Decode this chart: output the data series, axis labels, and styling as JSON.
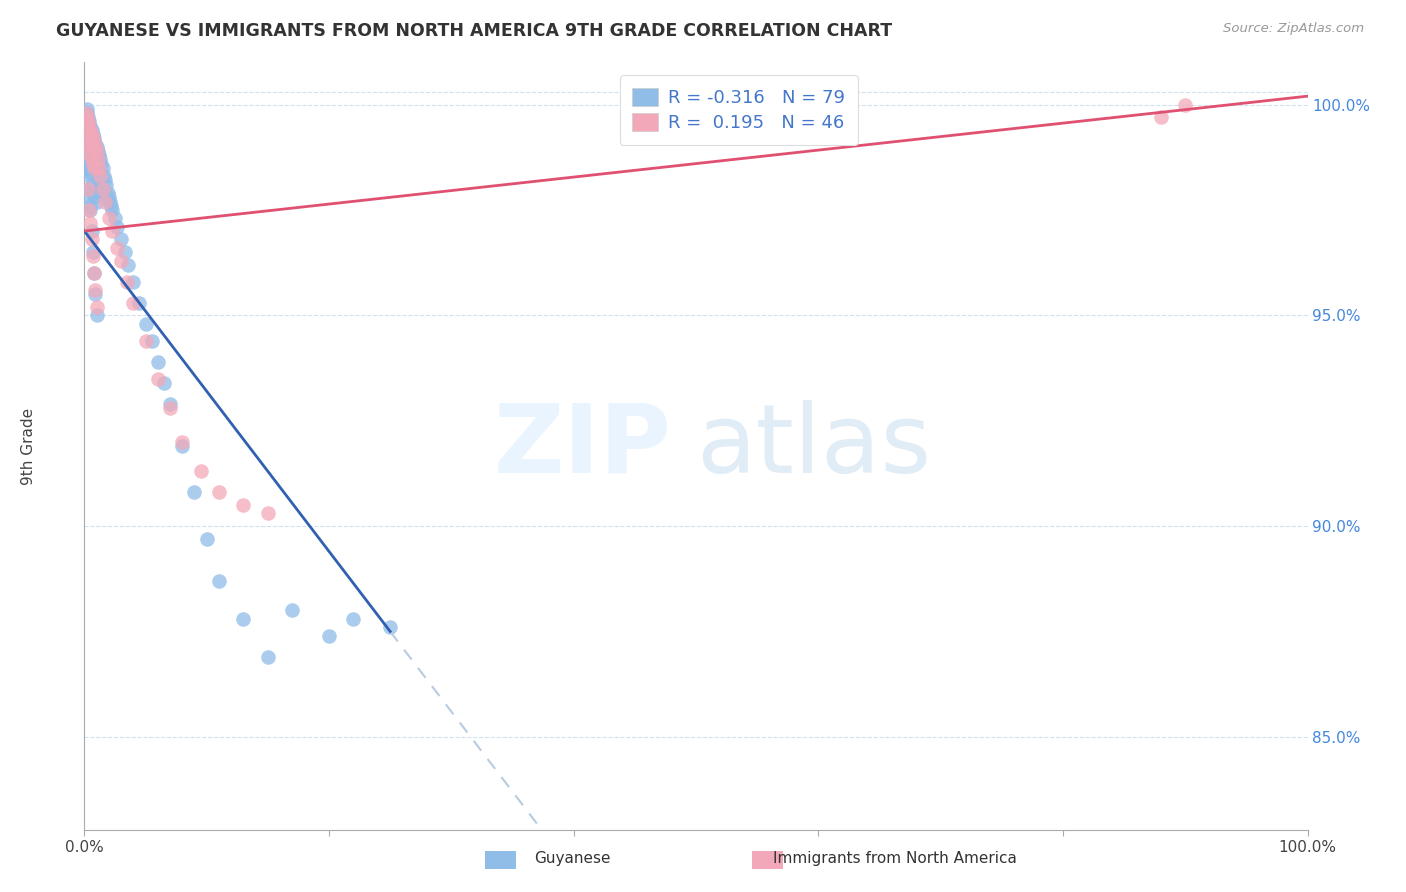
{
  "title": "GUYANESE VS IMMIGRANTS FROM NORTH AMERICA 9TH GRADE CORRELATION CHART",
  "source": "Source: ZipAtlas.com",
  "ylabel": "9th Grade",
  "blue_color": "#90bce8",
  "pink_color": "#f2a8b8",
  "blue_line_color": "#3060b0",
  "pink_line_color": "#e05070",
  "dashed_line_color": "#b8cce0",
  "legend_blue_r": "-0.316",
  "legend_blue_n": "79",
  "legend_pink_r": "0.195",
  "legend_pink_n": "46",
  "blue_line_x0": 0.0,
  "blue_line_y0": 0.97,
  "blue_line_x1": 0.25,
  "blue_line_y1": 0.875,
  "blue_line_solid_end": 0.25,
  "pink_line_x0": 0.0,
  "pink_line_y0": 0.97,
  "pink_line_x1": 1.0,
  "pink_line_y1": 1.002,
  "xlim": [
    0.0,
    1.0
  ],
  "ylim": [
    0.828,
    1.01
  ],
  "yticks": [
    0.85,
    0.9,
    0.95,
    1.0
  ],
  "ytick_labels": [
    "85.0%",
    "90.0%",
    "95.0%",
    "100.0%"
  ],
  "blue_x": [
    0.001,
    0.001,
    0.002,
    0.002,
    0.002,
    0.003,
    0.003,
    0.003,
    0.003,
    0.004,
    0.004,
    0.004,
    0.004,
    0.005,
    0.005,
    0.005,
    0.005,
    0.006,
    0.006,
    0.006,
    0.007,
    0.007,
    0.007,
    0.008,
    0.008,
    0.008,
    0.009,
    0.009,
    0.01,
    0.01,
    0.01,
    0.011,
    0.011,
    0.012,
    0.012,
    0.013,
    0.013,
    0.014,
    0.015,
    0.015,
    0.016,
    0.017,
    0.018,
    0.019,
    0.02,
    0.021,
    0.022,
    0.023,
    0.025,
    0.027,
    0.03,
    0.033,
    0.036,
    0.04,
    0.045,
    0.05,
    0.055,
    0.06,
    0.065,
    0.07,
    0.08,
    0.09,
    0.1,
    0.11,
    0.13,
    0.15,
    0.17,
    0.2,
    0.22,
    0.25,
    0.005,
    0.006,
    0.007,
    0.008,
    0.009,
    0.01,
    0.002,
    0.003,
    0.004
  ],
  "blue_y": [
    0.99,
    0.985,
    0.998,
    0.993,
    0.985,
    0.997,
    0.992,
    0.986,
    0.98,
    0.996,
    0.991,
    0.984,
    0.978,
    0.995,
    0.989,
    0.983,
    0.976,
    0.994,
    0.988,
    0.981,
    0.993,
    0.987,
    0.979,
    0.992,
    0.986,
    0.978,
    0.991,
    0.985,
    0.99,
    0.984,
    0.977,
    0.989,
    0.983,
    0.988,
    0.982,
    0.987,
    0.981,
    0.986,
    0.985,
    0.979,
    0.983,
    0.982,
    0.981,
    0.979,
    0.978,
    0.977,
    0.976,
    0.975,
    0.973,
    0.971,
    0.968,
    0.965,
    0.962,
    0.958,
    0.953,
    0.948,
    0.944,
    0.939,
    0.934,
    0.929,
    0.919,
    0.908,
    0.897,
    0.887,
    0.878,
    0.869,
    0.88,
    0.874,
    0.878,
    0.876,
    0.975,
    0.97,
    0.965,
    0.96,
    0.955,
    0.95,
    0.999,
    0.996,
    0.993
  ],
  "pink_x": [
    0.001,
    0.002,
    0.002,
    0.003,
    0.003,
    0.004,
    0.004,
    0.005,
    0.005,
    0.006,
    0.006,
    0.007,
    0.007,
    0.008,
    0.008,
    0.009,
    0.01,
    0.011,
    0.012,
    0.013,
    0.015,
    0.017,
    0.02,
    0.023,
    0.027,
    0.03,
    0.035,
    0.04,
    0.05,
    0.06,
    0.07,
    0.08,
    0.095,
    0.11,
    0.13,
    0.15,
    0.003,
    0.004,
    0.005,
    0.006,
    0.007,
    0.008,
    0.009,
    0.01,
    0.9,
    0.88
  ],
  "pink_y": [
    0.998,
    0.997,
    0.993,
    0.996,
    0.991,
    0.995,
    0.99,
    0.994,
    0.988,
    0.993,
    0.987,
    0.992,
    0.986,
    0.991,
    0.985,
    0.99,
    0.989,
    0.987,
    0.985,
    0.983,
    0.98,
    0.977,
    0.973,
    0.97,
    0.966,
    0.963,
    0.958,
    0.953,
    0.944,
    0.935,
    0.928,
    0.92,
    0.913,
    0.908,
    0.905,
    0.903,
    0.98,
    0.975,
    0.972,
    0.968,
    0.964,
    0.96,
    0.956,
    0.952,
    1.0,
    0.997
  ]
}
